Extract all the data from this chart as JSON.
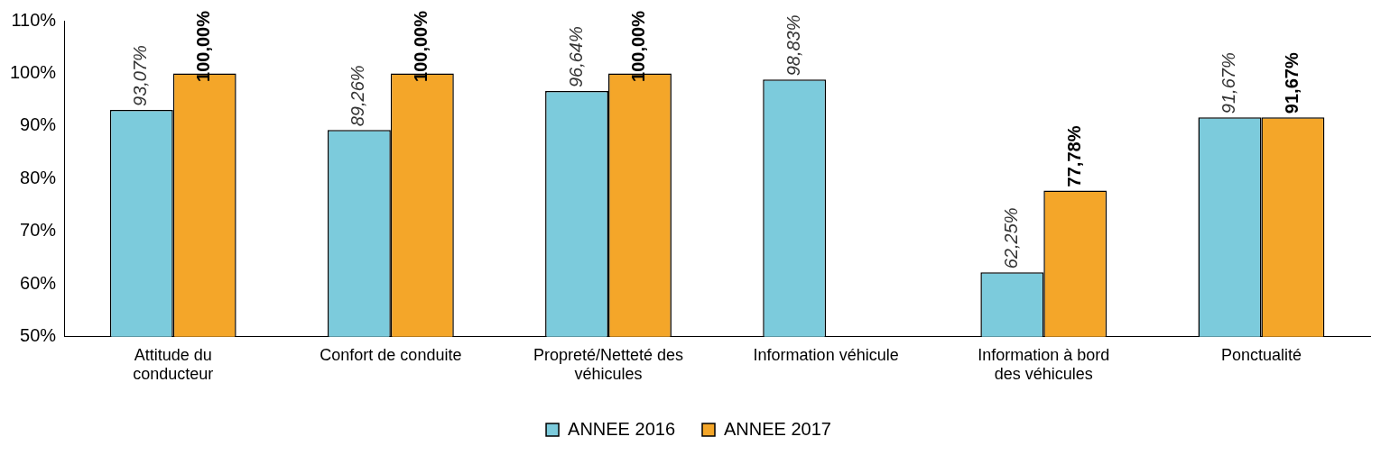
{
  "chart_data": {
    "type": "bar",
    "categories": [
      "Attitude du conducteur",
      "Confort de conduite",
      "Propreté/Netteté des véhicules",
      "Information véhicule",
      "Information à bord des véhicules",
      "Ponctualité"
    ],
    "series": [
      {
        "name": "ANNEE 2016",
        "color": "#7ccbdc",
        "values": [
          93.07,
          89.26,
          96.64,
          98.83,
          62.25,
          91.67
        ],
        "value_labels": [
          "93,07%",
          "89,26%",
          "96,64%",
          "98,83%",
          "62,25%",
          "91,67%"
        ]
      },
      {
        "name": "ANNEE 2017",
        "color": "#f4a629",
        "values": [
          100,
          100,
          100,
          null,
          77.78,
          91.67
        ],
        "value_labels": [
          "100,00%",
          "100,00%",
          "100,00%",
          null,
          "77,78%",
          "91,67%"
        ]
      }
    ],
    "ylim": [
      50,
      110
    ],
    "yticks": [
      {
        "value": 50,
        "label": "50%"
      },
      {
        "value": 60,
        "label": "60%"
      },
      {
        "value": 70,
        "label": "70%"
      },
      {
        "value": 80,
        "label": "80%"
      },
      {
        "value": 90,
        "label": "90%"
      },
      {
        "value": 100,
        "label": "100%"
      },
      {
        "value": 110,
        "label": "110%"
      }
    ],
    "grid": false,
    "legend": "bottom"
  }
}
